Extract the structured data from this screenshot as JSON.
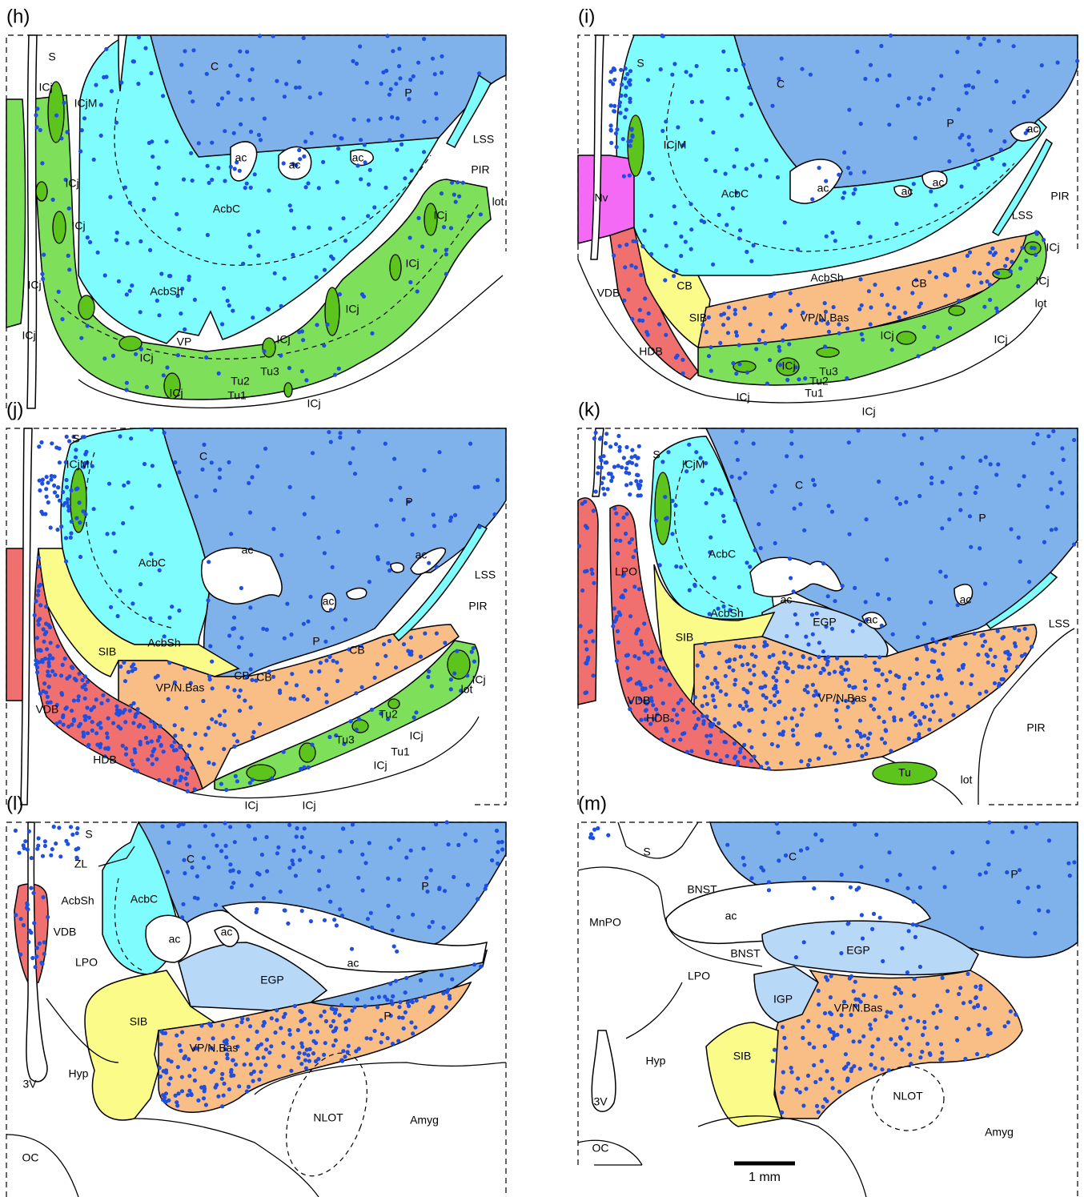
{
  "panels": [
    {
      "label": "(h)",
      "labels": [
        "S",
        "C",
        "P",
        "ICj",
        "ICjM",
        "ac",
        "ac",
        "ac",
        "LSS",
        "PIR",
        "lot",
        "AcbC",
        "ICj",
        "ICj",
        "ICj",
        "ICj",
        "AcbSh",
        "ICj",
        "ICj",
        "ICj",
        "VP",
        "ICj",
        "ICj",
        "Tu3",
        "Tu2",
        "Tu1",
        "ICj",
        "ICj"
      ]
    },
    {
      "label": "(i)",
      "labels": [
        "S",
        "C",
        "P",
        "ac",
        "ICjM",
        "LSS",
        "PIR",
        "Nv",
        "AcbC",
        "ac",
        "ac",
        "ac",
        "ICj",
        "lot",
        "ICj",
        "VDB",
        "AcbSh",
        "CB",
        "CB",
        "SIB",
        "VP/N.Bas",
        "ICj",
        "ICj",
        "HDB",
        "ICj",
        "Tu3",
        "Tu2",
        "Tu1",
        "ICj",
        "ICj"
      ]
    },
    {
      "label": "(j)",
      "labels": [
        "S",
        "C",
        "ICjM",
        "P",
        "ac",
        "ac",
        "ac",
        "LSS",
        "AcbC",
        "PIR",
        "AcbSh",
        "SIB",
        "P",
        "CB",
        "CB",
        "CB",
        "ICj",
        "VP/N.Bas",
        "lot",
        "VDB",
        "Tu2",
        "ICj",
        "Tu3",
        "Tu1",
        "HDB",
        "ICj",
        "ICj",
        "ICj"
      ]
    },
    {
      "label": "(k)",
      "labels": [
        "S",
        "ICjM",
        "C",
        "P",
        "AcbC",
        "LPO",
        "ac",
        "ac",
        "ac",
        "LSS",
        "AcbSh",
        "EGP",
        "SIB",
        "VP/N.Bas",
        "VDB",
        "HDB",
        "PIR",
        "Tu",
        "lot"
      ]
    },
    {
      "label": "(l)",
      "labels": [
        "S",
        "ZL",
        "C",
        "P",
        "AcbSh",
        "AcbC",
        "ac",
        "ac",
        "VDB",
        "LPO",
        "ac",
        "EGP",
        "P",
        "SIB",
        "VP/N.Bas",
        "Hyp",
        "3V",
        "NLOT",
        "Amyg",
        "OC"
      ]
    },
    {
      "label": "(m)",
      "labels": [
        "S",
        "C",
        "BNST",
        "P",
        "ac",
        "MnPO",
        "EGP",
        "BNST",
        "LPO",
        "IGP",
        "VP/N.Bas",
        "Hyp",
        "SIB",
        "NLOT",
        "3V",
        "Amyg",
        "OC"
      ]
    }
  ],
  "scale_bar": "1 mm"
}
